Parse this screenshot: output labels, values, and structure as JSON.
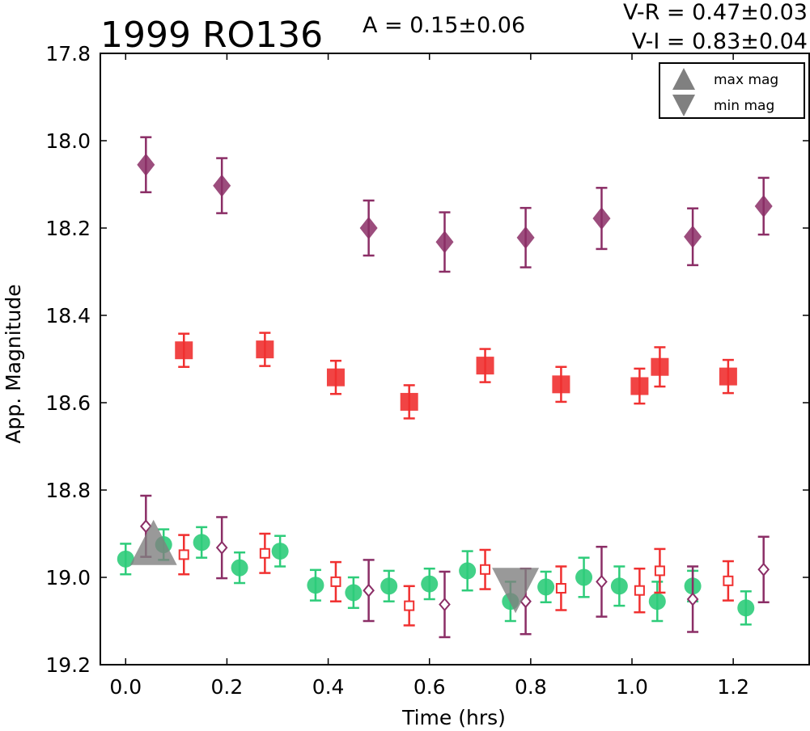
{
  "chart_data": {
    "type": "scatter",
    "title": "1999 RO136",
    "amplitude_text": "A  = 0.15±0.06",
    "color_lines": [
      "V-R = 0.47±0.03",
      "V-I  = 0.83±0.04"
    ],
    "xlabel": "Time (hrs)",
    "ylabel": "App. Magnitude",
    "xlim": [
      -0.05,
      1.35
    ],
    "ylim": [
      19.2,
      17.8
    ],
    "y_inverted": true,
    "xticks": [
      "0.0",
      "0.2",
      "0.4",
      "0.6",
      "0.8",
      "1.0",
      "1.2"
    ],
    "yticks": [
      "17.8",
      "18.0",
      "18.2",
      "18.4",
      "18.6",
      "18.8",
      "19.0",
      "19.2"
    ],
    "legend_position": "top-right",
    "legend": [
      {
        "label": "max mag",
        "marker": "triangle-up",
        "color": "#808080"
      },
      {
        "label": "min mag",
        "marker": "triangle-down",
        "color": "#808080"
      }
    ],
    "series": [
      {
        "marker": "diamond-filled",
        "color": "#8b2e66",
        "points": [
          {
            "x": 0.04,
            "y": 18.055,
            "err": 0.063
          },
          {
            "x": 0.19,
            "y": 18.103,
            "err": 0.063
          },
          {
            "x": 0.48,
            "y": 18.2,
            "err": 0.063
          },
          {
            "x": 0.63,
            "y": 18.232,
            "err": 0.068
          },
          {
            "x": 0.79,
            "y": 18.222,
            "err": 0.068
          },
          {
            "x": 0.94,
            "y": 18.178,
            "err": 0.07
          },
          {
            "x": 1.12,
            "y": 18.22,
            "err": 0.065
          },
          {
            "x": 1.26,
            "y": 18.15,
            "err": 0.065
          }
        ]
      },
      {
        "marker": "square-filled",
        "color": "#f03030",
        "points": [
          {
            "x": 0.115,
            "y": 18.48,
            "err": 0.038
          },
          {
            "x": 0.275,
            "y": 18.478,
            "err": 0.038
          },
          {
            "x": 0.415,
            "y": 18.542,
            "err": 0.038
          },
          {
            "x": 0.56,
            "y": 18.598,
            "err": 0.038
          },
          {
            "x": 0.71,
            "y": 18.515,
            "err": 0.038
          },
          {
            "x": 0.86,
            "y": 18.558,
            "err": 0.04
          },
          {
            "x": 1.015,
            "y": 18.562,
            "err": 0.04
          },
          {
            "x": 1.055,
            "y": 18.518,
            "err": 0.045
          },
          {
            "x": 1.19,
            "y": 18.54,
            "err": 0.038
          }
        ]
      },
      {
        "marker": "circle-filled",
        "color": "#2ecc7a",
        "points": [
          {
            "x": 0.0,
            "y": 18.958,
            "err": 0.035
          },
          {
            "x": 0.075,
            "y": 18.925,
            "err": 0.035
          },
          {
            "x": 0.15,
            "y": 18.92,
            "err": 0.035
          },
          {
            "x": 0.225,
            "y": 18.978,
            "err": 0.035
          },
          {
            "x": 0.305,
            "y": 18.94,
            "err": 0.035
          },
          {
            "x": 0.375,
            "y": 19.018,
            "err": 0.035
          },
          {
            "x": 0.45,
            "y": 19.035,
            "err": 0.035
          },
          {
            "x": 0.52,
            "y": 19.02,
            "err": 0.035
          },
          {
            "x": 0.6,
            "y": 19.015,
            "err": 0.035
          },
          {
            "x": 0.675,
            "y": 18.985,
            "err": 0.045
          },
          {
            "x": 0.76,
            "y": 19.055,
            "err": 0.045
          },
          {
            "x": 0.83,
            "y": 19.022,
            "err": 0.035
          },
          {
            "x": 0.905,
            "y": 19.0,
            "err": 0.045
          },
          {
            "x": 0.975,
            "y": 19.02,
            "err": 0.045
          },
          {
            "x": 1.05,
            "y": 19.055,
            "err": 0.045
          },
          {
            "x": 1.12,
            "y": 19.02,
            "err": 0.035
          },
          {
            "x": 1.225,
            "y": 19.07,
            "err": 0.038
          }
        ]
      },
      {
        "marker": "square-open",
        "color": "#f03030",
        "points": [
          {
            "x": 0.115,
            "y": 18.948,
            "err": 0.045
          },
          {
            "x": 0.275,
            "y": 18.945,
            "err": 0.045
          },
          {
            "x": 0.415,
            "y": 19.01,
            "err": 0.045
          },
          {
            "x": 0.56,
            "y": 19.065,
            "err": 0.045
          },
          {
            "x": 0.71,
            "y": 18.982,
            "err": 0.045
          },
          {
            "x": 0.86,
            "y": 19.025,
            "err": 0.05
          },
          {
            "x": 1.015,
            "y": 19.03,
            "err": 0.05
          },
          {
            "x": 1.055,
            "y": 18.985,
            "err": 0.05
          },
          {
            "x": 1.19,
            "y": 19.008,
            "err": 0.045
          }
        ]
      },
      {
        "marker": "diamond-open",
        "color": "#8b2e66",
        "points": [
          {
            "x": 0.04,
            "y": 18.883,
            "err": 0.07
          },
          {
            "x": 0.19,
            "y": 18.932,
            "err": 0.07
          },
          {
            "x": 0.48,
            "y": 19.03,
            "err": 0.07
          },
          {
            "x": 0.63,
            "y": 19.062,
            "err": 0.075
          },
          {
            "x": 0.79,
            "y": 19.055,
            "err": 0.075
          },
          {
            "x": 0.94,
            "y": 19.01,
            "err": 0.08
          },
          {
            "x": 1.12,
            "y": 19.05,
            "err": 0.075
          },
          {
            "x": 1.26,
            "y": 18.982,
            "err": 0.075
          }
        ]
      }
    ],
    "extrema": [
      {
        "type": "max",
        "x": 0.055,
        "y": 18.92,
        "marker": "triangle-up",
        "color": "#808080"
      },
      {
        "type": "min",
        "x": 0.77,
        "y": 19.03,
        "marker": "triangle-down",
        "color": "#808080"
      }
    ]
  }
}
